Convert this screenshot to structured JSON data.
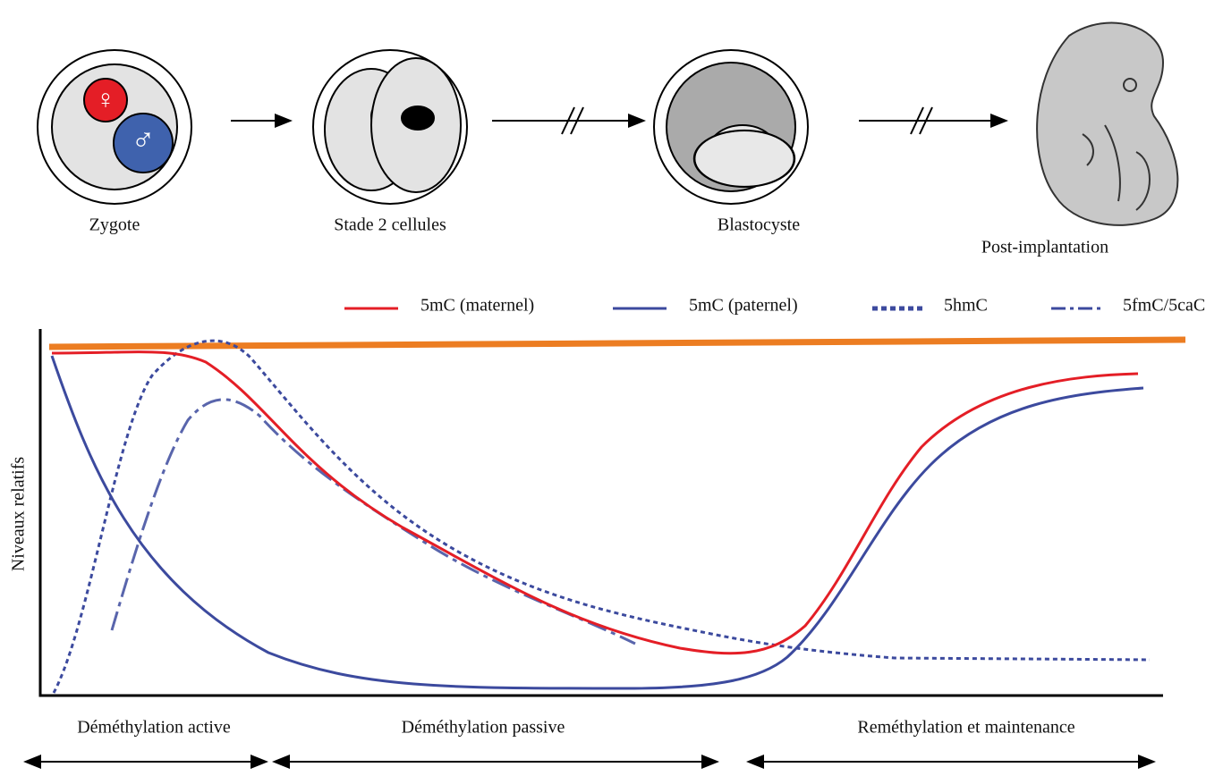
{
  "stages": [
    "Zygote",
    "Stade 2 cellules",
    "Blastocyste",
    "Post-implantation"
  ],
  "symbols": {
    "female": "♀",
    "male": "♂"
  },
  "legend": [
    "5mC (maternel)",
    "5mC (paternel)",
    "5hmC",
    "5fmC/5caC"
  ],
  "y_axis_label": "Niveaux relatifs",
  "phases": [
    "Déméthylation active",
    "Déméthylation passive",
    "Reméthylation et maintenance"
  ]
}
